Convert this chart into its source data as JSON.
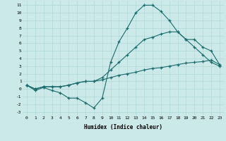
{
  "xlabel": "Humidex (Indice chaleur)",
  "bg_color": "#cce9e9",
  "line_color": "#1a6b6b",
  "grid_color": "#afd8d8",
  "xlim": [
    -0.5,
    23.5
  ],
  "ylim": [
    -3.5,
    11.5
  ],
  "xticks": [
    0,
    1,
    2,
    3,
    4,
    5,
    6,
    7,
    8,
    9,
    10,
    11,
    12,
    13,
    14,
    15,
    16,
    17,
    18,
    19,
    20,
    21,
    22,
    23
  ],
  "yticks": [
    -3,
    -2,
    -1,
    0,
    1,
    2,
    3,
    4,
    5,
    6,
    7,
    8,
    9,
    10,
    11
  ],
  "series": [
    {
      "x": [
        0,
        1,
        2,
        3,
        4,
        5,
        6,
        7,
        8,
        9,
        10,
        11,
        12,
        13,
        14,
        15,
        16,
        17,
        18,
        19,
        20,
        21,
        22,
        23
      ],
      "y": [
        0.5,
        -0.2,
        0.2,
        -0.2,
        -0.5,
        -1.2,
        -1.2,
        -1.8,
        -2.5,
        -1.2,
        3.5,
        6.2,
        8.0,
        10.0,
        11.0,
        11.0,
        10.2,
        9.0,
        7.5,
        6.5,
        5.5,
        4.5,
        3.5,
        3.0
      ]
    },
    {
      "x": [
        0,
        1,
        2,
        3,
        4,
        5,
        6,
        7,
        8,
        9,
        10,
        11,
        12,
        13,
        14,
        15,
        16,
        17,
        18,
        19,
        20,
        21,
        22,
        23
      ],
      "y": [
        0.5,
        0.0,
        0.3,
        0.3,
        0.3,
        0.5,
        0.8,
        1.0,
        1.0,
        1.2,
        1.5,
        1.8,
        2.0,
        2.2,
        2.5,
        2.7,
        2.8,
        3.0,
        3.2,
        3.4,
        3.5,
        3.6,
        3.8,
        3.2
      ]
    },
    {
      "x": [
        0,
        1,
        2,
        3,
        4,
        5,
        6,
        7,
        8,
        9,
        10,
        11,
        12,
        13,
        14,
        15,
        16,
        17,
        18,
        19,
        20,
        21,
        22,
        23
      ],
      "y": [
        0.5,
        0.0,
        0.3,
        0.3,
        0.3,
        0.5,
        0.8,
        1.0,
        1.0,
        1.5,
        2.5,
        3.5,
        4.5,
        5.5,
        6.5,
        6.8,
        7.2,
        7.5,
        7.5,
        6.5,
        6.5,
        5.5,
        5.0,
        3.2
      ]
    }
  ]
}
